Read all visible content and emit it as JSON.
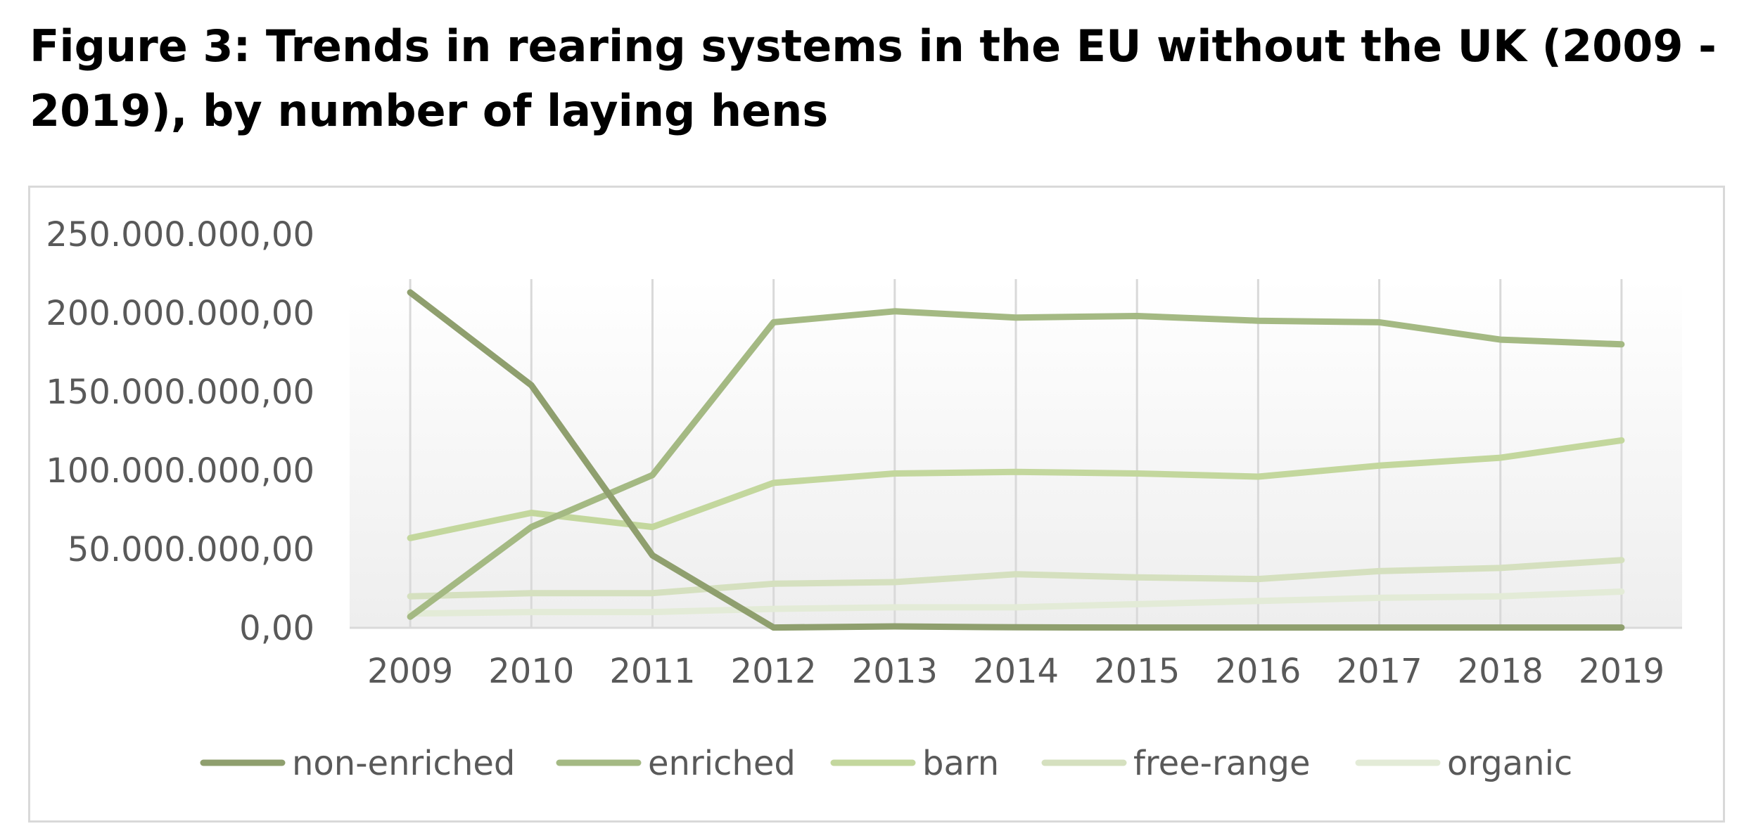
{
  "title": "Figure 3: Trends in rearing systems in the EU without the UK (2009 - 2019), by number of laying hens",
  "chart_data": {
    "type": "line",
    "title": "",
    "xlabel": "",
    "ylabel": "",
    "categories": [
      "2009",
      "2010",
      "2011",
      "2012",
      "2013",
      "2014",
      "2015",
      "2016",
      "2017",
      "2018",
      "2019"
    ],
    "ylim": [
      0,
      250000000
    ],
    "yticks": [
      0,
      50000000,
      100000000,
      150000000,
      200000000,
      250000000
    ],
    "ytick_labels": [
      "0,00",
      "50.000.000,00",
      "100.000.000,00",
      "150.000.000,00",
      "200.000.000,00",
      "250.000.000,00"
    ],
    "grid": "vertical",
    "legend_position": "bottom",
    "series": [
      {
        "name": "non-enriched",
        "color": "#8f9f6e",
        "values": [
          213000000,
          154000000,
          46000000,
          200000,
          900000,
          300000,
          200000,
          200000,
          200000,
          200000,
          200000
        ]
      },
      {
        "name": "enriched",
        "color": "#a4b983",
        "values": [
          7000000,
          64000000,
          97000000,
          194000000,
          201000000,
          197000000,
          198000000,
          195000000,
          194000000,
          183000000,
          180000000
        ]
      },
      {
        "name": "barn",
        "color": "#c3d79d",
        "values": [
          57000000,
          73000000,
          64000000,
          92000000,
          98000000,
          99000000,
          98000000,
          96000000,
          103000000,
          108000000,
          119000000
        ]
      },
      {
        "name": "free-range",
        "color": "#d5e0bf",
        "values": [
          20000000,
          22000000,
          22000000,
          28000000,
          29000000,
          34000000,
          32000000,
          31000000,
          36000000,
          38000000,
          43000000
        ]
      },
      {
        "name": "organic",
        "color": "#e3ebd7",
        "values": [
          9000000,
          10000000,
          10000000,
          12000000,
          13000000,
          13000000,
          15000000,
          17000000,
          19000000,
          20000000,
          23000000
        ]
      }
    ]
  }
}
